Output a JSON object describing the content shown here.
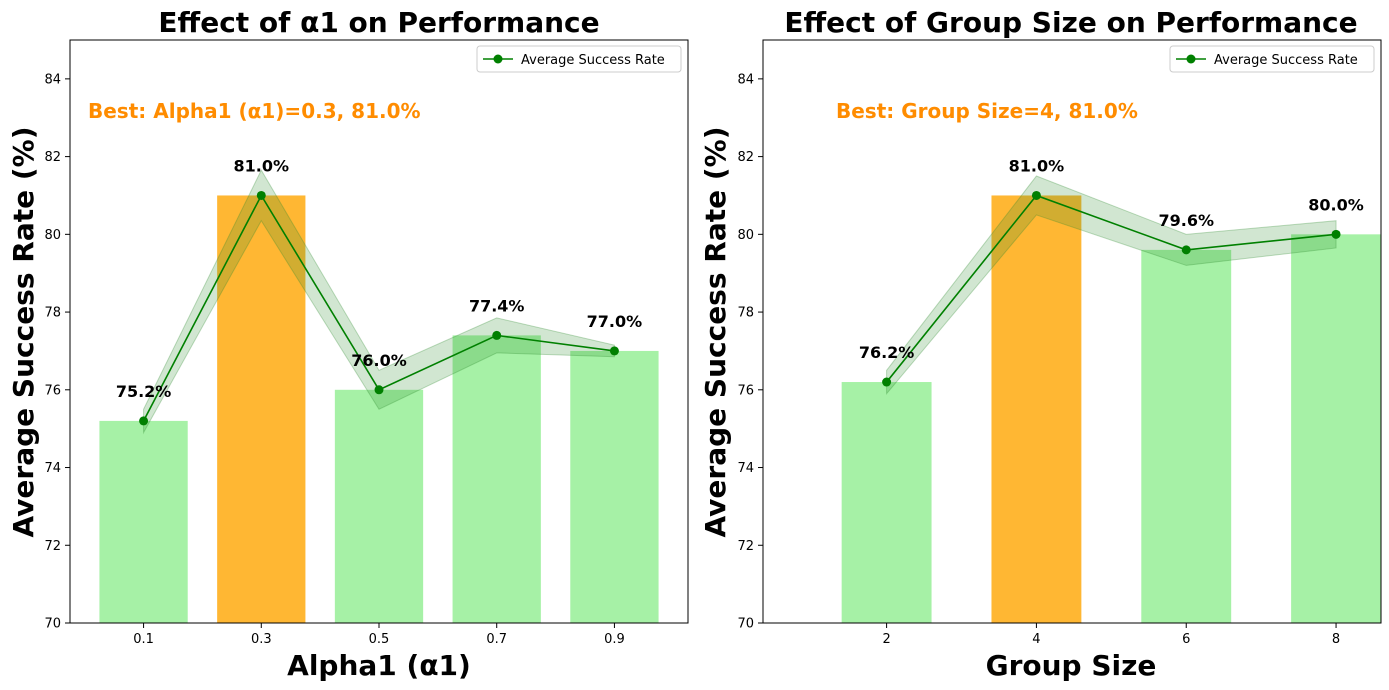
{
  "colors": {
    "bar": "#90ee90",
    "best_bar": "#ffa500",
    "line": "#008000",
    "band": "#2e8b2e",
    "best_text": "#ff8c00"
  },
  "chart_data": [
    {
      "type": "bar",
      "title": "Effect of α1 on Performance",
      "xlabel": "Alpha1 (α1)",
      "ylabel": "Average Success Rate (%)",
      "categories": [
        "0.1",
        "0.3",
        "0.5",
        "0.7",
        "0.9"
      ],
      "x": [
        0.1,
        0.3,
        0.5,
        0.7,
        0.9
      ],
      "xlim": [
        -0.025,
        1.025
      ],
      "bar_width": 0.15,
      "values": [
        75.2,
        81.0,
        76.0,
        77.4,
        77.0
      ],
      "band_lower": [
        74.9,
        80.35,
        75.5,
        76.95,
        76.85
      ],
      "band_upper": [
        75.5,
        81.65,
        76.5,
        77.85,
        77.15
      ],
      "data_labels": [
        "75.2%",
        "81.0%",
        "76.0%",
        "77.4%",
        "77.0%"
      ],
      "best_index": 1,
      "ylim": [
        70,
        85
      ],
      "yticks": [
        "70",
        "72",
        "74",
        "76",
        "78",
        "80",
        "82",
        "84"
      ],
      "yticks_values": [
        70,
        72,
        74,
        76,
        78,
        80,
        82,
        84
      ],
      "legend": "Average Success Rate",
      "legend_position": "top-right",
      "best_annotation": "Best: Alpha1 (α1)=0.3, 81.0%"
    },
    {
      "type": "bar",
      "title": "Effect of Group Size on Performance",
      "xlabel": "Group Size",
      "ylabel": "Average Success Rate (%)",
      "categories": [
        "2",
        "4",
        "6",
        "8"
      ],
      "x": [
        2,
        4,
        6,
        8
      ],
      "xlim": [
        0.35,
        8.6
      ],
      "bar_width": 1.2,
      "values": [
        76.2,
        81.0,
        79.6,
        80.0
      ],
      "band_lower": [
        75.9,
        80.5,
        79.2,
        79.65
      ],
      "band_upper": [
        76.5,
        81.5,
        80.0,
        80.35
      ],
      "data_labels": [
        "76.2%",
        "81.0%",
        "79.6%",
        "80.0%"
      ],
      "best_index": 1,
      "ylim": [
        70,
        85
      ],
      "yticks": [
        "70",
        "72",
        "74",
        "76",
        "78",
        "80",
        "82",
        "84"
      ],
      "yticks_values": [
        70,
        72,
        74,
        76,
        78,
        80,
        82,
        84
      ],
      "legend": "Average Success Rate",
      "legend_position": "top-right",
      "best_annotation": "Best: Group Size=4, 81.0%"
    }
  ]
}
